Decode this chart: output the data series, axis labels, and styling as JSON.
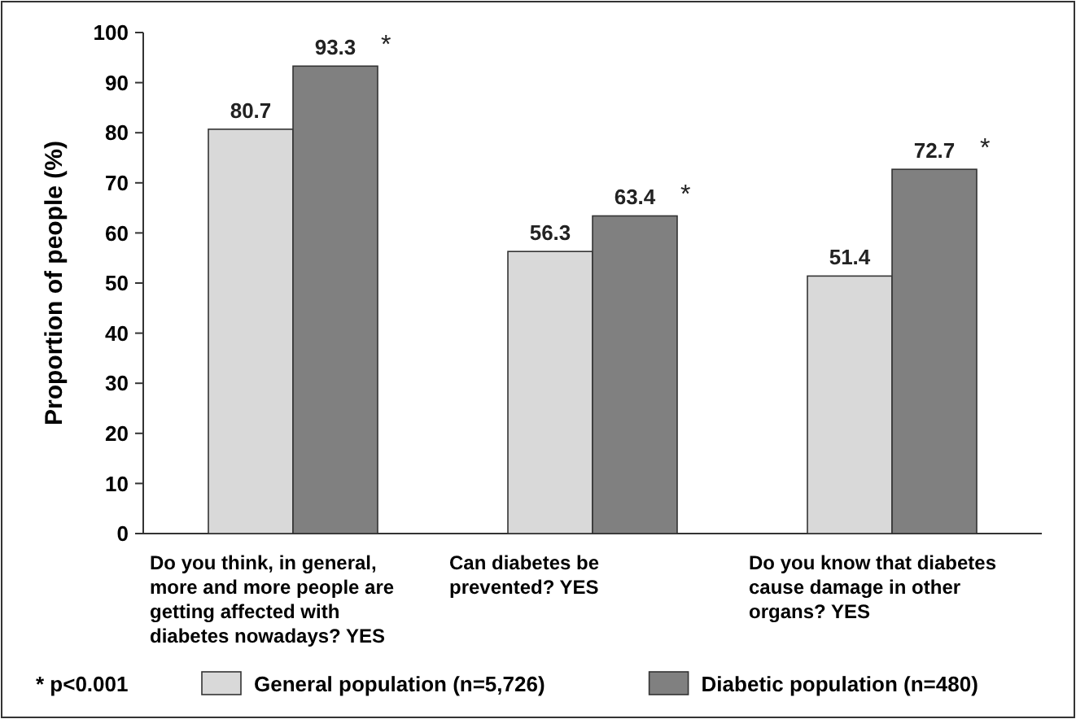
{
  "chart_data": {
    "type": "bar",
    "ylabel": "Proportion of people (%)",
    "categories": [
      "Do you think, in general, more and more people are getting affected with diabetes nowadays? YES",
      "Can diabetes be prevented? YES",
      "Do you know that diabetes cause damage in other organs? YES"
    ],
    "series": [
      {
        "name": "General population (n=5,726)",
        "color": "#d9d9d9",
        "values": [
          80.7,
          56.3,
          51.4
        ]
      },
      {
        "name": "Diabetic population (n=480)",
        "color": "#808080",
        "values": [
          93.3,
          63.4,
          72.7
        ]
      }
    ],
    "ylim": [
      0,
      100
    ],
    "yticks": [
      0,
      10,
      20,
      30,
      40,
      50,
      60,
      70,
      80,
      90,
      100
    ],
    "data_labels": true,
    "grid": false,
    "legend": "bottom",
    "annotations": [
      "* p<0.001",
      "*",
      "*",
      "*"
    ]
  }
}
